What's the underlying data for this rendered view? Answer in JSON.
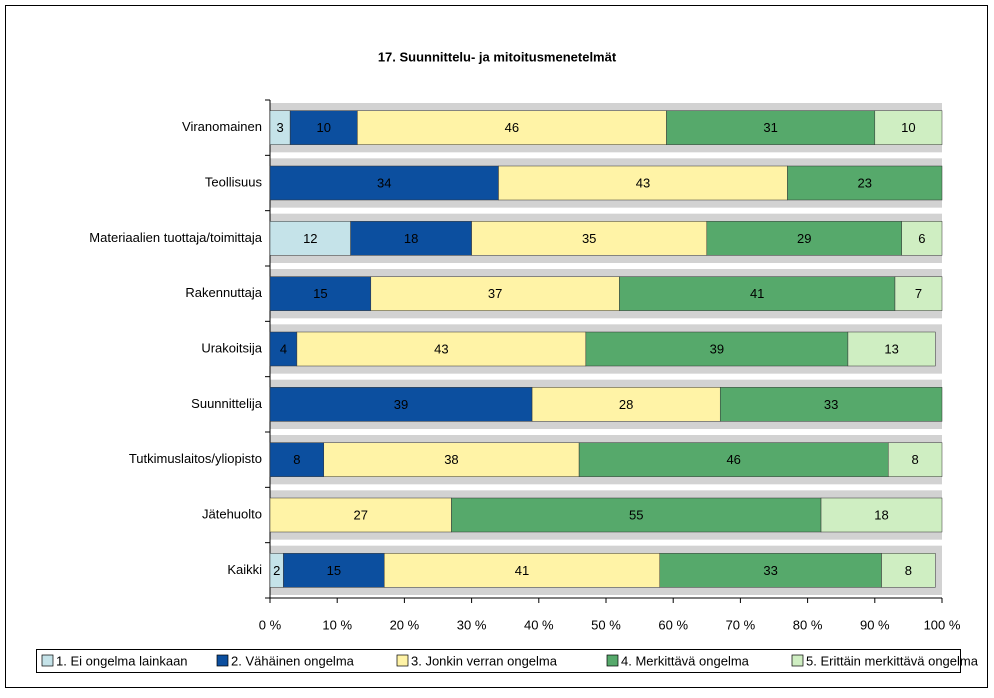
{
  "chart_data": {
    "type": "stacked_barh",
    "title": "17. Suunnittelu- ja mitoitusmenetelmät",
    "categories": [
      "Viranomainen",
      "Teollisuus",
      "Materiaalien tuottaja/toimittaja",
      "Rakennuttaja",
      "Urakoitsija",
      "Suunnittelija",
      "Tutkimuslaitos/yliopisto",
      "Jätehuolto",
      "Kaikki"
    ],
    "series": [
      {
        "name": "1. Ei ongelma lainkaan",
        "color": "#c5e3e9",
        "values": [
          3,
          null,
          12,
          null,
          null,
          null,
          null,
          null,
          2
        ]
      },
      {
        "name": "2. Vähäinen ongelma",
        "color": "#0c4f9f",
        "values": [
          10,
          34,
          18,
          15,
          4,
          39,
          8,
          null,
          15
        ]
      },
      {
        "name": "3. Jonkin verran ongelma",
        "color": "#fff3a6",
        "values": [
          46,
          43,
          35,
          37,
          43,
          28,
          38,
          27,
          41
        ]
      },
      {
        "name": "4. Merkittävä ongelma",
        "color": "#56a96b",
        "values": [
          31,
          23,
          29,
          41,
          39,
          33,
          46,
          55,
          33
        ]
      },
      {
        "name": "5. Erittäin merkittävä ongelma",
        "color": "#cfeec2",
        "values": [
          10,
          null,
          6,
          7,
          13,
          null,
          8,
          18,
          8
        ]
      }
    ],
    "xlim": [
      0,
      100
    ],
    "xticks": [
      {
        "value": 0,
        "label": "0 %"
      },
      {
        "value": 10,
        "label": "10 %"
      },
      {
        "value": 20,
        "label": "20 %"
      },
      {
        "value": 30,
        "label": "30 %"
      },
      {
        "value": 40,
        "label": "40 %"
      },
      {
        "value": 50,
        "label": "50 %"
      },
      {
        "value": 60,
        "label": "60 %"
      },
      {
        "value": 70,
        "label": "70 %"
      },
      {
        "value": 80,
        "label": "80 %"
      },
      {
        "value": 90,
        "label": "90 %"
      },
      {
        "value": 100,
        "label": "100 %"
      }
    ],
    "legend": "bottom"
  }
}
